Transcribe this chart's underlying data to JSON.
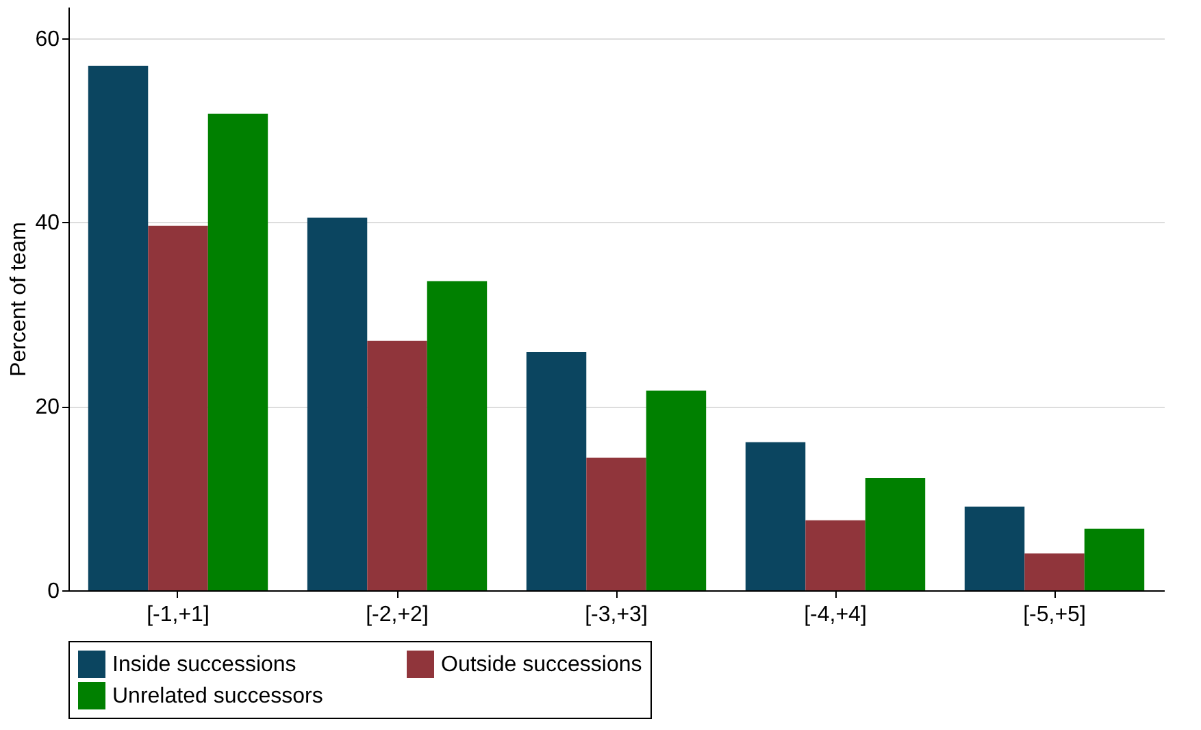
{
  "chart_data": {
    "type": "bar",
    "ylabel": "Percent of team",
    "categories": [
      "[-1,+1]",
      "[-2,+2]",
      "[-3,+3]",
      "[-4,+4]",
      "[-5,+5]"
    ],
    "series": [
      {
        "name": "Inside successions",
        "color": "#0b4560",
        "values": [
          57.0,
          40.5,
          25.9,
          16.1,
          9.1
        ]
      },
      {
        "name": "Outside successions",
        "color": "#90353b",
        "values": [
          39.6,
          27.1,
          14.4,
          7.6,
          4.0
        ]
      },
      {
        "name": "Unrelated successors",
        "color": "#008000",
        "values": [
          51.8,
          33.6,
          21.7,
          12.2,
          6.7
        ]
      }
    ],
    "ylim": [
      0,
      63.4
    ],
    "yticks": [
      0,
      20,
      40,
      60
    ],
    "grid": "y",
    "legend": "bottom"
  }
}
